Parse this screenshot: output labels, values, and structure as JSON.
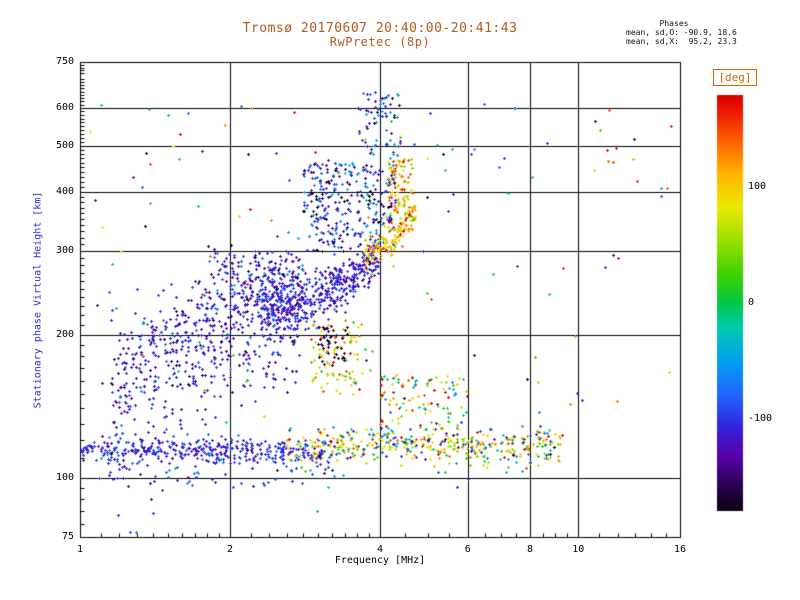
{
  "header": {
    "title": "Tromsø 20170607 20:40:00-20:41:43",
    "subtitle": "RwPretec (8p)",
    "stats_title": "Phases",
    "stats_line_o": "mean, sd,O: -90.9, 18.6",
    "stats_line_x": "mean, sd,X:  95.2, 23.3"
  },
  "colors": {
    "title": "#b35a1f",
    "ylabel": "#2b32c8",
    "xlabel": "#000000",
    "axis": "#000000",
    "deg_label": "#dd6600",
    "background": "#ffffff"
  },
  "chart_data": {
    "type": "scatter",
    "title": "Tromsø 20170607 20:40:00-20:41:43",
    "subtitle": "RwPretec (8p)",
    "xlabel": "Frequency [MHz]",
    "ylabel": "Stationary phase Virtual Height [km]",
    "x_scale": "log",
    "y_scale": "log",
    "xlim": [
      1,
      16
    ],
    "ylim": [
      75,
      750
    ],
    "x_ticks": [
      1,
      2,
      4,
      6,
      8,
      10,
      16
    ],
    "y_ticks": [
      750,
      600,
      500,
      400,
      300,
      200,
      100,
      75
    ],
    "x_gridlines": [
      2,
      4,
      6,
      8,
      10
    ],
    "y_gridlines": [
      600,
      500,
      400,
      300,
      200,
      100
    ],
    "grid": true,
    "legend": "colorbar-right",
    "colorbar": {
      "label": "[deg]",
      "min": -180,
      "max": 180,
      "ticks": [
        100,
        0,
        -100
      ],
      "stops": [
        [
          0,
          "#0a0012"
        ],
        [
          0.06,
          "#2a0050"
        ],
        [
          0.13,
          "#5a00a8"
        ],
        [
          0.2,
          "#3322dd"
        ],
        [
          0.28,
          "#2266ff"
        ],
        [
          0.36,
          "#00a0f0"
        ],
        [
          0.44,
          "#00c8b0"
        ],
        [
          0.5,
          "#00c845"
        ],
        [
          0.57,
          "#40d200"
        ],
        [
          0.65,
          "#9ae000"
        ],
        [
          0.73,
          "#eaea00"
        ],
        [
          0.81,
          "#ffb400"
        ],
        [
          0.89,
          "#ff6000"
        ],
        [
          0.96,
          "#ee1800"
        ],
        [
          1,
          "#d80000"
        ]
      ]
    },
    "phase_stats": {
      "mean_O": -90.9,
      "sd_O": 18.6,
      "mean_X": 95.2,
      "sd_X": 23.3
    },
    "seed": 20170607,
    "clusters": [
      {
        "name": "e-baseline-blue",
        "n": 380,
        "f": [
          1.0,
          3.2
        ],
        "h_mean": 114,
        "h_sd": 3.5,
        "phase_mean": -105,
        "phase_sd": 20
      },
      {
        "name": "baseline-colored",
        "n": 320,
        "f": [
          2.6,
          9.3
        ],
        "h_mean": 117,
        "h_sd": 5,
        "phase_mean": 85,
        "phase_sd": 55
      },
      {
        "name": "baseline-blue-right",
        "n": 100,
        "f": [
          3.0,
          9.0
        ],
        "h_mean": 118,
        "h_sd": 6,
        "phase_mean": -90,
        "phase_sd": 35
      },
      {
        "name": "e-cloud",
        "n": 650,
        "f": [
          1.15,
          2.75
        ],
        "ridge": [
          150,
          235,
          1
        ],
        "h_sd": 35,
        "phase_mean": -115,
        "phase_sd": 25
      },
      {
        "name": "e-cloud-top",
        "n": 150,
        "f": [
          1.8,
          2.8
        ],
        "h_range": [
          230,
          300
        ],
        "phase_mean": -110,
        "phase_sd": 30
      },
      {
        "name": "f-trace",
        "n": 450,
        "f": [
          2.3,
          4.0
        ],
        "ridge": [
          225,
          295,
          2
        ],
        "h_sd": 14,
        "phase_mean": -112,
        "phase_sd": 22
      },
      {
        "name": "f-spread-upper",
        "n": 300,
        "f": [
          2.8,
          4.3
        ],
        "h_range": [
          300,
          460
        ],
        "phase_mean": -105,
        "phase_sd": 50
      },
      {
        "name": "cusp-yellow",
        "n": 130,
        "f": [
          3.7,
          4.7
        ],
        "ridge": [
          298,
          370,
          2
        ],
        "h_sd": 12,
        "phase_mean": 105,
        "phase_sd": 35
      },
      {
        "name": "x-column-orange",
        "n": 110,
        "f": [
          4.15,
          4.65
        ],
        "h_range": [
          330,
          470
        ],
        "phase_mean": 115,
        "phase_sd": 40
      },
      {
        "name": "topside-sparse",
        "n": 70,
        "f": [
          3.6,
          4.4
        ],
        "h_range": [
          470,
          650
        ],
        "phase_mean": -95,
        "phase_sd": 45
      },
      {
        "name": "mid-yellow-patch",
        "n": 90,
        "f": [
          2.9,
          3.7
        ],
        "h_range": [
          150,
          215
        ],
        "phase_mean": 85,
        "phase_sd": 55
      },
      {
        "name": "dark-patch",
        "n": 45,
        "f": [
          3.0,
          3.45
        ],
        "h_range": [
          172,
          210
        ],
        "phase_mean": -165,
        "phase_sd": 10
      },
      {
        "name": "scatter-mid-right",
        "n": 110,
        "f": [
          4.0,
          6.0
        ],
        "h_range": [
          125,
          165
        ],
        "phase_mean": 60,
        "phase_sd": 80
      },
      {
        "name": "below-band",
        "n": 60,
        "f": [
          1.0,
          3.5
        ],
        "h_range": [
          95,
          110
        ],
        "phase_mean": -100,
        "phase_sd": 30
      },
      {
        "name": "outliers",
        "n": 130,
        "f": [
          1.0,
          15.5
        ],
        "h_range": [
          85,
          620
        ],
        "phase_range": [
          -180,
          180
        ]
      }
    ]
  }
}
